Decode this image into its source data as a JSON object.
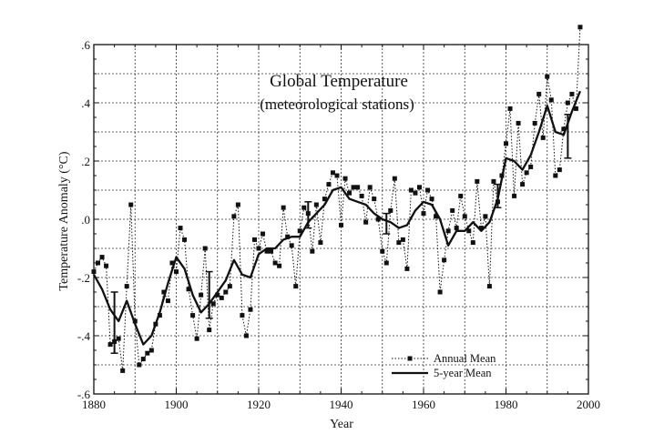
{
  "chart_data": {
    "type": "line",
    "title": "Global Temperature",
    "subtitle": "(meteorological stations)",
    "xlabel": "Year",
    "ylabel": "Temperature Anomaly (°C)",
    "xlim": [
      1880,
      2000
    ],
    "ylim": [
      -0.6,
      0.6
    ],
    "x_ticks": [
      1880,
      1900,
      1920,
      1940,
      1960,
      1980,
      2000
    ],
    "y_ticks": [
      -0.6,
      -0.4,
      -0.2,
      0.0,
      0.2,
      0.4,
      0.6
    ],
    "x_tick_labels": [
      "1880",
      "1900",
      "1920",
      "1940",
      "1960",
      "1980",
      "2000"
    ],
    "y_tick_labels": [
      "-.6",
      "-.4",
      "-.2",
      ".0",
      ".2",
      ".4",
      ".6"
    ],
    "grid": true,
    "legend_position": "bottom-right",
    "series": [
      {
        "name": "Annual Mean",
        "style": "dotted-with-square-markers",
        "color": "#111111",
        "x": [
          1880,
          1881,
          1882,
          1883,
          1884,
          1885,
          1886,
          1887,
          1888,
          1889,
          1890,
          1891,
          1892,
          1893,
          1894,
          1895,
          1896,
          1897,
          1898,
          1899,
          1900,
          1901,
          1902,
          1903,
          1904,
          1905,
          1906,
          1907,
          1908,
          1909,
          1910,
          1911,
          1912,
          1913,
          1914,
          1915,
          1916,
          1917,
          1918,
          1919,
          1920,
          1921,
          1922,
          1923,
          1924,
          1925,
          1926,
          1927,
          1928,
          1929,
          1930,
          1931,
          1932,
          1933,
          1934,
          1935,
          1936,
          1937,
          1938,
          1939,
          1940,
          1941,
          1942,
          1943,
          1944,
          1945,
          1946,
          1947,
          1948,
          1949,
          1950,
          1951,
          1952,
          1953,
          1954,
          1955,
          1956,
          1957,
          1958,
          1959,
          1960,
          1961,
          1962,
          1963,
          1964,
          1965,
          1966,
          1967,
          1968,
          1969,
          1970,
          1971,
          1972,
          1973,
          1974,
          1975,
          1976,
          1977,
          1978,
          1979,
          1980,
          1981,
          1982,
          1983,
          1984,
          1985,
          1986,
          1987,
          1988,
          1989,
          1990,
          1991,
          1992,
          1993,
          1994,
          1995,
          1996,
          1997,
          1998
        ],
        "values": [
          -0.18,
          -0.15,
          -0.13,
          -0.16,
          -0.43,
          -0.42,
          -0.41,
          -0.52,
          -0.23,
          0.05,
          -0.35,
          -0.5,
          -0.48,
          -0.46,
          -0.45,
          -0.36,
          -0.33,
          -0.25,
          -0.28,
          -0.15,
          -0.18,
          -0.03,
          -0.07,
          -0.24,
          -0.33,
          -0.41,
          -0.26,
          -0.1,
          -0.38,
          -0.29,
          -0.26,
          -0.27,
          -0.25,
          -0.23,
          0.01,
          0.05,
          -0.33,
          -0.4,
          -0.31,
          -0.07,
          -0.1,
          -0.05,
          -0.11,
          -0.11,
          -0.15,
          -0.16,
          0.04,
          -0.06,
          -0.09,
          -0.23,
          -0.04,
          0.04,
          0.02,
          -0.11,
          0.05,
          -0.08,
          0.07,
          0.12,
          0.16,
          0.15,
          -0.02,
          0.14,
          0.09,
          0.11,
          0.11,
          0.08,
          -0.01,
          0.11,
          0.07,
          0.0,
          -0.11,
          -0.15,
          0.03,
          0.14,
          -0.08,
          -0.07,
          -0.17,
          0.1,
          0.09,
          0.11,
          0.02,
          0.1,
          0.07,
          0.01,
          -0.25,
          -0.14,
          -0.04,
          0.03,
          -0.03,
          0.08,
          0.01,
          -0.04,
          -0.08,
          0.13,
          -0.03,
          0.01,
          -0.23,
          0.13,
          0.06,
          0.15,
          0.26,
          0.38,
          0.08,
          0.33,
          0.12,
          0.16,
          0.18,
          0.33,
          0.43,
          0.28,
          0.49,
          0.41,
          0.15,
          0.17,
          0.31,
          0.4,
          0.43,
          0.38,
          0.66
        ]
      },
      {
        "name": "5-year Mean",
        "style": "solid",
        "color": "#111111",
        "x": [
          1880,
          1882,
          1884,
          1886,
          1888,
          1890,
          1892,
          1894,
          1896,
          1898,
          1900,
          1902,
          1904,
          1906,
          1908,
          1910,
          1912,
          1914,
          1916,
          1918,
          1920,
          1922,
          1924,
          1926,
          1928,
          1930,
          1932,
          1934,
          1936,
          1938,
          1940,
          1942,
          1944,
          1946,
          1948,
          1950,
          1952,
          1954,
          1956,
          1958,
          1960,
          1962,
          1964,
          1966,
          1968,
          1970,
          1972,
          1974,
          1976,
          1978,
          1980,
          1982,
          1984,
          1986,
          1988,
          1990,
          1992,
          1994,
          1996,
          1998
        ],
        "values": [
          -0.19,
          -0.24,
          -0.31,
          -0.35,
          -0.28,
          -0.36,
          -0.43,
          -0.4,
          -0.32,
          -0.22,
          -0.13,
          -0.17,
          -0.26,
          -0.32,
          -0.29,
          -0.25,
          -0.21,
          -0.14,
          -0.19,
          -0.2,
          -0.12,
          -0.1,
          -0.1,
          -0.07,
          -0.06,
          -0.06,
          -0.01,
          0.02,
          0.05,
          0.1,
          0.11,
          0.07,
          0.06,
          0.05,
          0.02,
          0.0,
          -0.01,
          -0.03,
          -0.02,
          0.03,
          0.06,
          0.05,
          0.0,
          -0.09,
          -0.04,
          -0.04,
          -0.01,
          -0.04,
          -0.01,
          0.07,
          0.21,
          0.2,
          0.17,
          0.22,
          0.3,
          0.39,
          0.3,
          0.29,
          0.37,
          0.44
        ]
      }
    ],
    "error_bars": [
      {
        "x": 1885,
        "y": -0.36,
        "low": -0.46,
        "high": -0.25
      },
      {
        "x": 1908,
        "y": -0.29,
        "low": -0.34,
        "high": -0.18
      },
      {
        "x": 1932,
        "y": 0.02,
        "low": -0.03,
        "high": 0.06
      },
      {
        "x": 1951,
        "y": -0.02,
        "low": -0.05,
        "high": 0.02
      },
      {
        "x": 1978,
        "y": 0.07,
        "low": 0.04,
        "high": 0.12
      },
      {
        "x": 1995,
        "y": 0.28,
        "low": 0.21,
        "high": 0.36
      }
    ]
  }
}
